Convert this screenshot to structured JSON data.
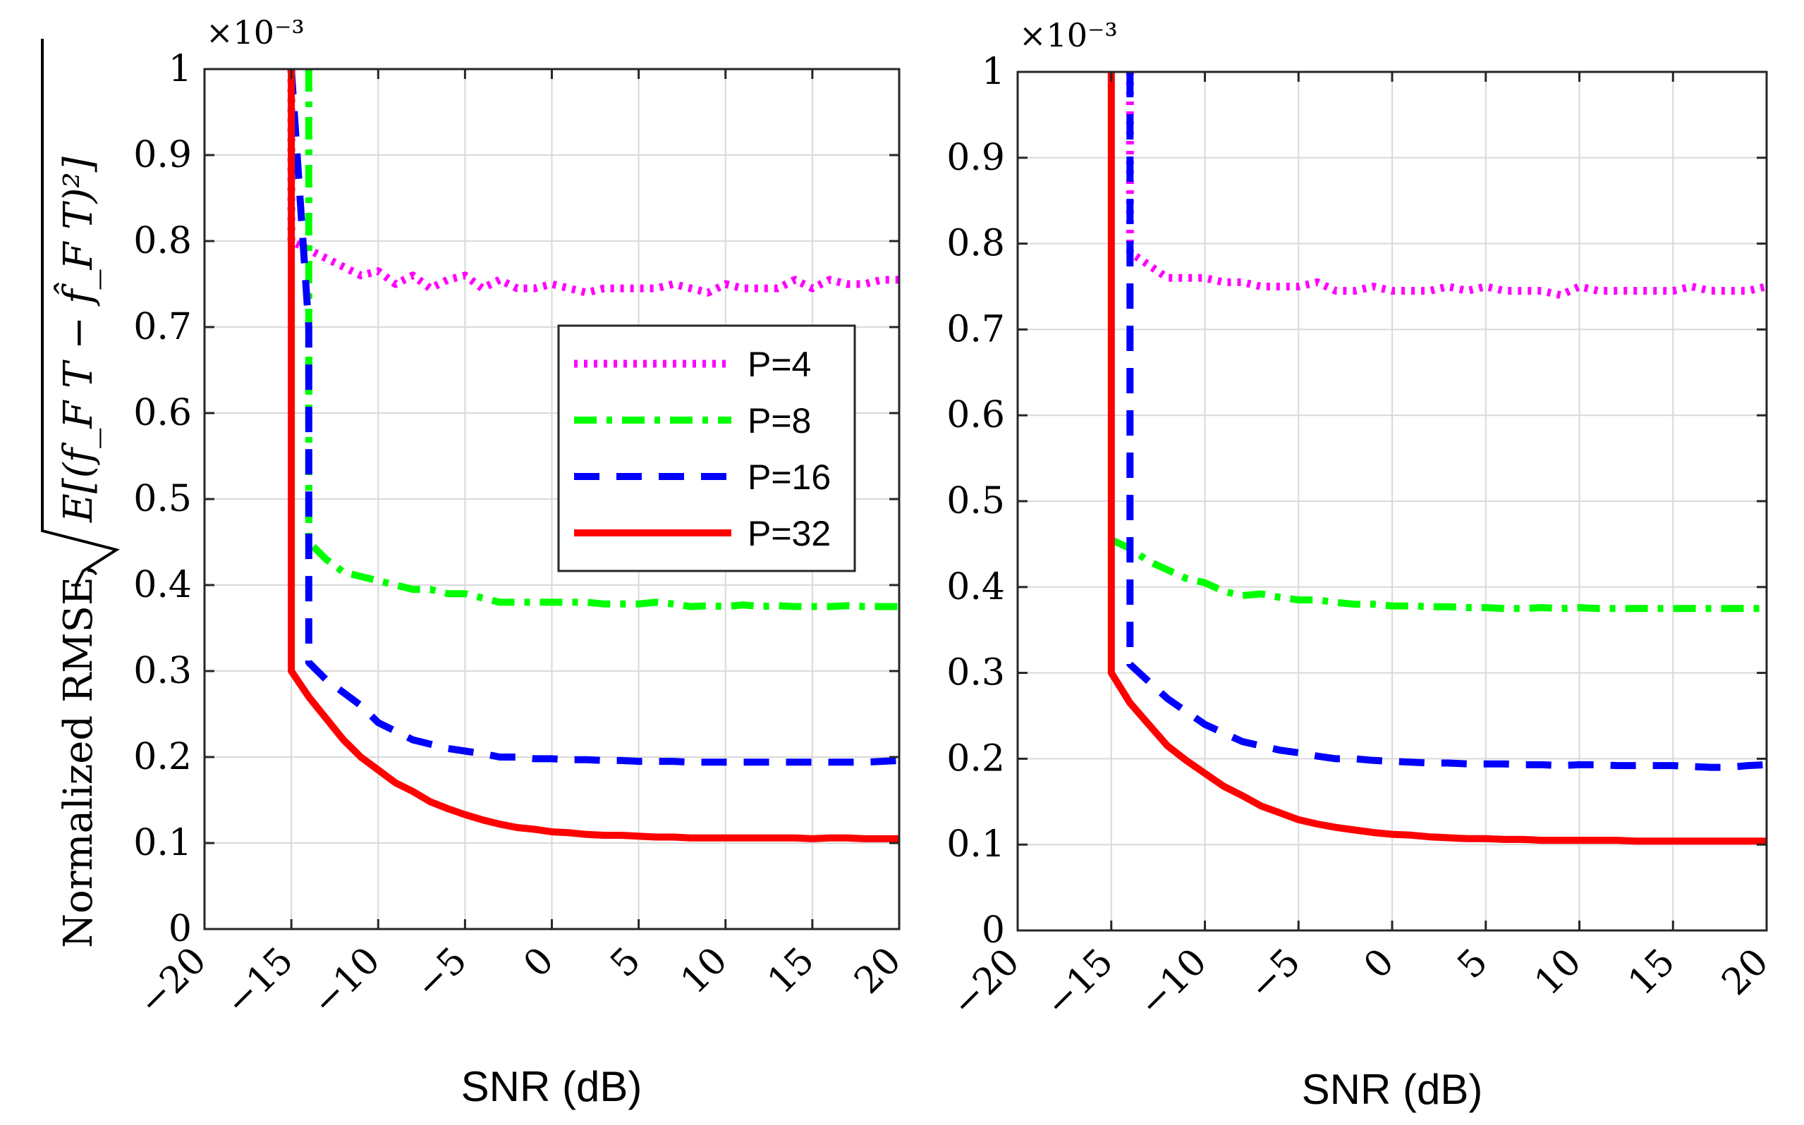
{
  "chart_data": [
    {
      "type": "line",
      "panel": "left",
      "xlabel": "SNR (dB)",
      "ylabel_prefix": "Normalized RMSE,",
      "ylabel_math": "E[(f_F T − f̂_F T)²]",
      "y_exponent_label": "×10⁻³",
      "xlim": [
        -20,
        20
      ],
      "ylim": [
        0,
        1
      ],
      "xticks": [
        "−20",
        "−15",
        "−10",
        "−5",
        "0",
        "5",
        "10",
        "15",
        "20"
      ],
      "yticks": [
        "0",
        "0.1",
        "0.2",
        "0.3",
        "0.4",
        "0.5",
        "0.6",
        "0.7",
        "0.8",
        "0.9",
        "1"
      ],
      "grid": true,
      "legend": {
        "position": "center-right",
        "entries": [
          "P=4",
          "P=8",
          "P=16",
          "P=32"
        ]
      },
      "series": [
        {
          "name": "P=4",
          "color": "#ff00ff",
          "style": "dotted",
          "x": [
            -15,
            -15,
            -14,
            -13,
            -12,
            -11,
            -10,
            -9,
            -8,
            -7,
            -6,
            -5,
            -4,
            -3,
            -2,
            -1,
            0,
            1,
            2,
            3,
            4,
            5,
            6,
            7,
            8,
            9,
            10,
            11,
            12,
            13,
            14,
            15,
            16,
            17,
            18,
            19,
            20
          ],
          "y": [
            1.0,
            0.8,
            0.79,
            0.78,
            0.77,
            0.76,
            0.765,
            0.75,
            0.76,
            0.745,
            0.755,
            0.76,
            0.745,
            0.755,
            0.745,
            0.745,
            0.75,
            0.745,
            0.74,
            0.745,
            0.745,
            0.745,
            0.745,
            0.75,
            0.745,
            0.74,
            0.75,
            0.745,
            0.745,
            0.745,
            0.755,
            0.745,
            0.755,
            0.75,
            0.75,
            0.755,
            0.755
          ]
        },
        {
          "name": "P=8",
          "color": "#00ff00",
          "style": "dashdot",
          "x": [
            -14,
            -14,
            -13,
            -12,
            -11,
            -10,
            -9,
            -8,
            -7,
            -6,
            -5,
            -4,
            -3,
            -2,
            -1,
            0,
            1,
            2,
            3,
            4,
            5,
            6,
            7,
            8,
            9,
            10,
            11,
            12,
            13,
            14,
            15,
            16,
            17,
            18,
            19,
            20
          ],
          "y": [
            1.0,
            0.45,
            0.43,
            0.415,
            0.41,
            0.405,
            0.4,
            0.395,
            0.395,
            0.39,
            0.39,
            0.385,
            0.38,
            0.38,
            0.38,
            0.38,
            0.38,
            0.38,
            0.378,
            0.378,
            0.378,
            0.38,
            0.378,
            0.375,
            0.376,
            0.375,
            0.377,
            0.375,
            0.376,
            0.375,
            0.375,
            0.375,
            0.376,
            0.375,
            0.375,
            0.375
          ]
        },
        {
          "name": "P=16",
          "color": "#0000ff",
          "style": "dashed",
          "x": [
            -15,
            -14,
            -14,
            -13,
            -12,
            -11,
            -10,
            -9,
            -8,
            -7,
            -6,
            -5,
            -4,
            -3,
            -2,
            -1,
            0,
            1,
            2,
            3,
            4,
            5,
            6,
            7,
            8,
            9,
            10,
            11,
            12,
            13,
            14,
            15,
            16,
            17,
            18,
            19,
            20
          ],
          "y": [
            1.0,
            0.7,
            0.31,
            0.29,
            0.275,
            0.26,
            0.24,
            0.23,
            0.22,
            0.215,
            0.21,
            0.207,
            0.204,
            0.2,
            0.2,
            0.198,
            0.198,
            0.197,
            0.197,
            0.196,
            0.196,
            0.195,
            0.195,
            0.195,
            0.194,
            0.194,
            0.194,
            0.194,
            0.194,
            0.194,
            0.194,
            0.194,
            0.194,
            0.194,
            0.194,
            0.195,
            0.196
          ]
        },
        {
          "name": "P=32",
          "color": "#ff0000",
          "style": "solid",
          "x": [
            -15,
            -15,
            -14,
            -13,
            -12,
            -11,
            -10,
            -9,
            -8,
            -7,
            -6,
            -5,
            -4,
            -3,
            -2,
            -1,
            0,
            1,
            2,
            3,
            4,
            5,
            6,
            7,
            8,
            9,
            10,
            11,
            12,
            13,
            14,
            15,
            16,
            17,
            18,
            19,
            20
          ],
          "y": [
            1.0,
            0.3,
            0.27,
            0.245,
            0.22,
            0.2,
            0.185,
            0.17,
            0.16,
            0.148,
            0.14,
            0.133,
            0.127,
            0.122,
            0.118,
            0.116,
            0.113,
            0.112,
            0.11,
            0.109,
            0.109,
            0.108,
            0.107,
            0.107,
            0.106,
            0.106,
            0.106,
            0.106,
            0.106,
            0.106,
            0.106,
            0.105,
            0.106,
            0.106,
            0.105,
            0.105,
            0.105
          ]
        }
      ]
    },
    {
      "type": "line",
      "panel": "right",
      "xlabel": "SNR (dB)",
      "y_exponent_label": "×10⁻³",
      "xlim": [
        -20,
        20
      ],
      "ylim": [
        0,
        1
      ],
      "xticks": [
        "−20",
        "−15",
        "−10",
        "−5",
        "0",
        "5",
        "10",
        "15",
        "20"
      ],
      "yticks": [
        "0",
        "0.1",
        "0.2",
        "0.3",
        "0.4",
        "0.5",
        "0.6",
        "0.7",
        "0.8",
        "0.9",
        "1"
      ],
      "grid": true,
      "series": [
        {
          "name": "P=4",
          "color": "#ff00ff",
          "style": "dotted",
          "x": [
            -14,
            -14,
            -13,
            -12,
            -11,
            -10,
            -9,
            -8,
            -7,
            -6,
            -5,
            -4,
            -3,
            -2,
            -1,
            0,
            1,
            2,
            3,
            4,
            5,
            6,
            7,
            8,
            9,
            10,
            11,
            12,
            13,
            14,
            15,
            16,
            17,
            18,
            19,
            20
          ],
          "y": [
            1.0,
            0.79,
            0.775,
            0.76,
            0.76,
            0.76,
            0.755,
            0.755,
            0.75,
            0.75,
            0.75,
            0.755,
            0.745,
            0.745,
            0.75,
            0.745,
            0.745,
            0.745,
            0.75,
            0.745,
            0.75,
            0.745,
            0.745,
            0.745,
            0.74,
            0.75,
            0.745,
            0.745,
            0.745,
            0.745,
            0.745,
            0.75,
            0.745,
            0.745,
            0.745,
            0.75
          ]
        },
        {
          "name": "P=8",
          "color": "#00ff00",
          "style": "dashdot",
          "x": [
            -15,
            -14,
            -13,
            -12,
            -11,
            -10,
            -9,
            -8,
            -7,
            -6,
            -5,
            -4,
            -3,
            -2,
            -1,
            0,
            1,
            2,
            3,
            4,
            5,
            6,
            7,
            8,
            9,
            10,
            11,
            12,
            13,
            14,
            15,
            16,
            17,
            18,
            19,
            20
          ],
          "y": [
            0.455,
            0.445,
            0.43,
            0.42,
            0.41,
            0.405,
            0.395,
            0.39,
            0.392,
            0.388,
            0.385,
            0.385,
            0.382,
            0.38,
            0.38,
            0.378,
            0.378,
            0.377,
            0.377,
            0.376,
            0.376,
            0.375,
            0.375,
            0.376,
            0.375,
            0.376,
            0.375,
            0.375,
            0.375,
            0.375,
            0.375,
            0.375,
            0.375,
            0.375,
            0.375,
            0.375
          ]
        },
        {
          "name": "P=16",
          "color": "#0000ff",
          "style": "dashed",
          "x": [
            -14,
            -14,
            -13,
            -12,
            -11,
            -10,
            -9,
            -8,
            -7,
            -6,
            -5,
            -4,
            -3,
            -2,
            -1,
            0,
            1,
            2,
            3,
            4,
            5,
            6,
            7,
            8,
            9,
            10,
            11,
            12,
            13,
            14,
            15,
            16,
            17,
            18,
            19,
            20
          ],
          "y": [
            1.0,
            0.31,
            0.29,
            0.27,
            0.255,
            0.24,
            0.23,
            0.22,
            0.215,
            0.21,
            0.207,
            0.203,
            0.2,
            0.2,
            0.198,
            0.197,
            0.196,
            0.195,
            0.195,
            0.194,
            0.194,
            0.194,
            0.193,
            0.193,
            0.192,
            0.193,
            0.193,
            0.192,
            0.192,
            0.192,
            0.192,
            0.191,
            0.19,
            0.19,
            0.192,
            0.193
          ]
        },
        {
          "name": "P=32",
          "color": "#ff0000",
          "style": "solid",
          "x": [
            -15,
            -15,
            -14,
            -13,
            -12,
            -11,
            -10,
            -9,
            -8,
            -7,
            -6,
            -5,
            -4,
            -3,
            -2,
            -1,
            0,
            1,
            2,
            3,
            4,
            5,
            6,
            7,
            8,
            9,
            10,
            11,
            12,
            13,
            14,
            15,
            16,
            17,
            18,
            19,
            20
          ],
          "y": [
            1.0,
            0.3,
            0.265,
            0.24,
            0.215,
            0.198,
            0.183,
            0.168,
            0.157,
            0.145,
            0.137,
            0.129,
            0.124,
            0.12,
            0.117,
            0.114,
            0.112,
            0.111,
            0.109,
            0.108,
            0.107,
            0.107,
            0.106,
            0.106,
            0.105,
            0.105,
            0.105,
            0.105,
            0.105,
            0.104,
            0.104,
            0.104,
            0.104,
            0.104,
            0.104,
            0.104,
            0.104
          ]
        }
      ]
    }
  ]
}
